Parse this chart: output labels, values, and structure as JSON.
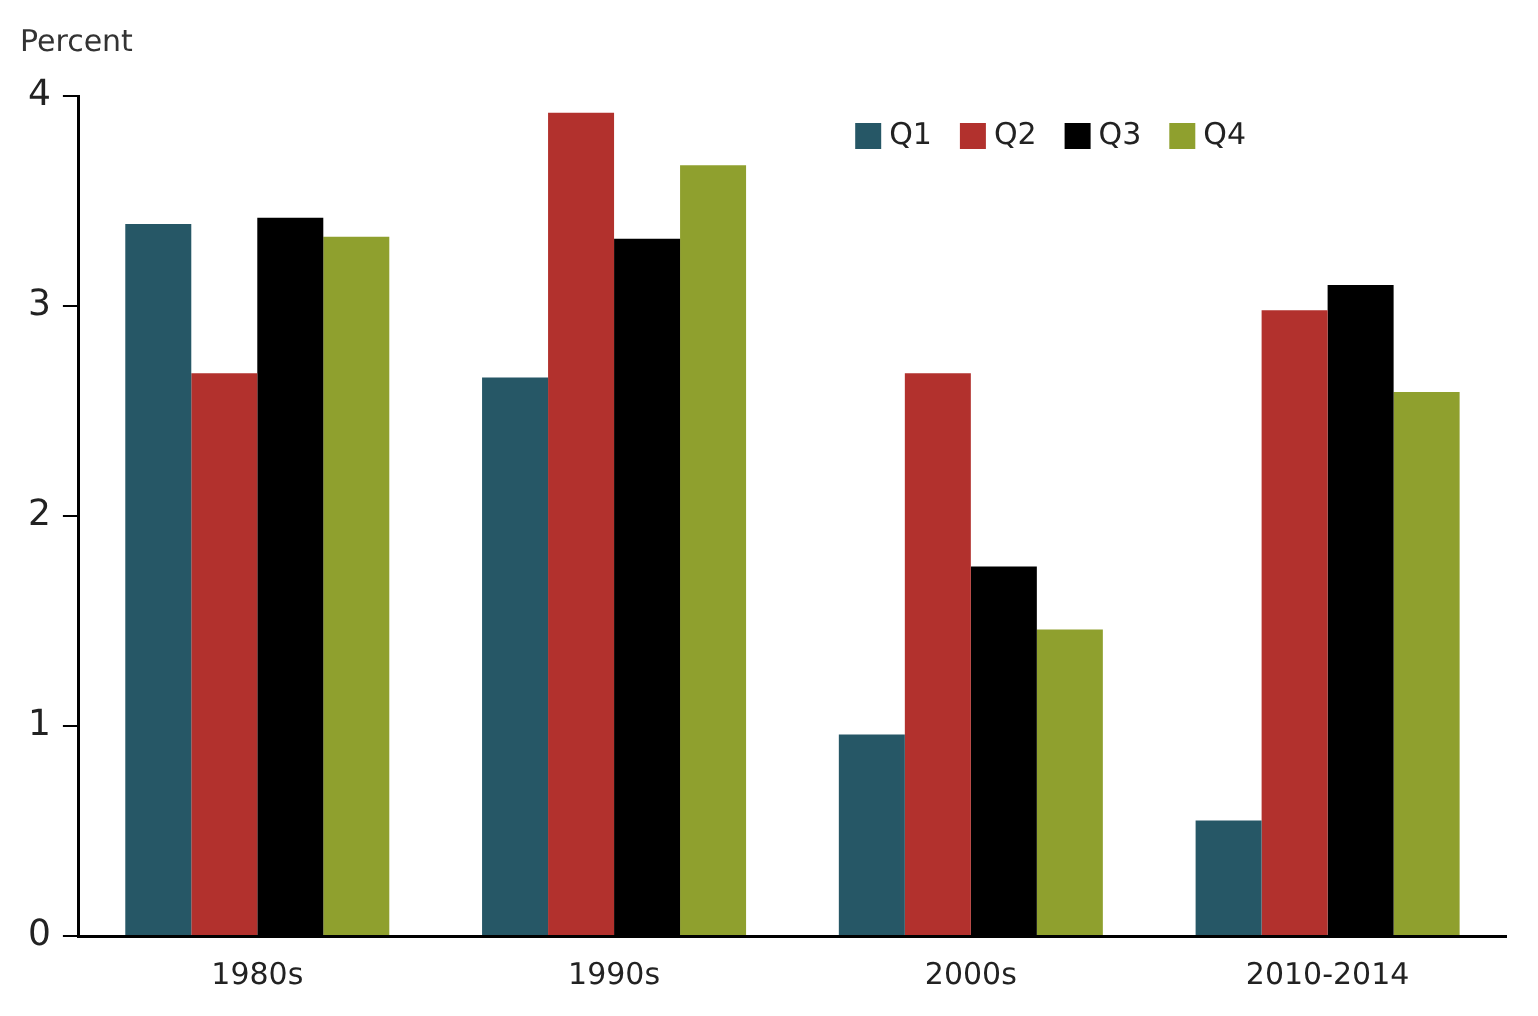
{
  "chart_data": {
    "type": "bar",
    "ylabel": "Percent",
    "categories": [
      "1980s",
      "1990s",
      "2000s",
      "2010-2014"
    ],
    "series": [
      {
        "name": "Q1",
        "color": "#265766",
        "values": [
          3.39,
          2.66,
          0.96,
          0.55
        ]
      },
      {
        "name": "Q2",
        "color": "#b2312d",
        "values": [
          2.68,
          3.92,
          2.68,
          2.98
        ]
      },
      {
        "name": "Q3",
        "color": "#000000",
        "values": [
          3.42,
          3.32,
          1.76,
          3.1
        ]
      },
      {
        "name": "Q4",
        "color": "#8fa02e",
        "values": [
          3.33,
          3.67,
          1.46,
          2.59
        ]
      }
    ],
    "ylim": [
      0,
      4
    ],
    "yticks": [
      0,
      1,
      2,
      3,
      4
    ],
    "grid": false,
    "legend": "top right"
  }
}
